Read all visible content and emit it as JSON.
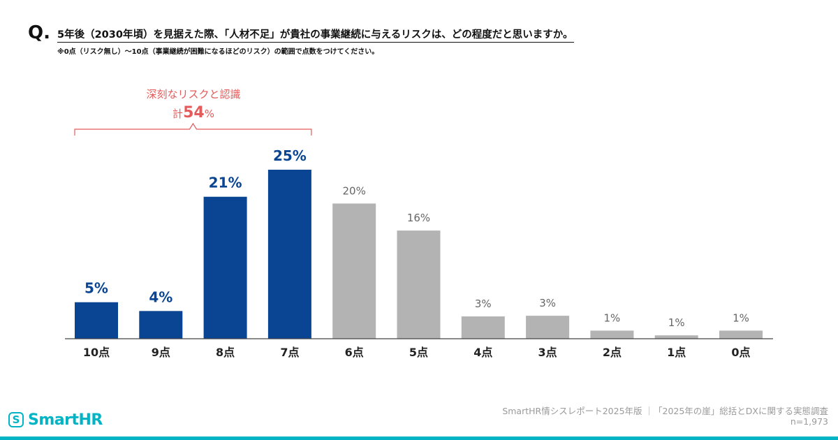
{
  "header": {
    "q_mark": "Q.",
    "question": "5年後（2030年頃）を見据えた際、「人材不足」が貴社の事業継続に与えるリスクは、どの程度だと思いますか。",
    "note": "※0点（リスク無し）〜10点（事業継続が困難になるほどのリスク）の範囲で点数をつけてください。"
  },
  "chart_data": {
    "type": "bar",
    "title": "",
    "xlabel": "",
    "ylabel": "",
    "categories": [
      "10点",
      "9点",
      "8点",
      "7点",
      "6点",
      "5点",
      "4点",
      "3点",
      "2点",
      "1点",
      "0点"
    ],
    "values": [
      5.4,
      4.1,
      21,
      25,
      20,
      16,
      3.3,
      3.4,
      1.2,
      0.5,
      1.2
    ],
    "value_labels": [
      "5%",
      "4%",
      "21%",
      "25%",
      "20%",
      "16%",
      "3%",
      "3%",
      "1%",
      "1%",
      "1%"
    ],
    "ylim": [
      0,
      25
    ],
    "grid": false,
    "highlight_count": 4,
    "colors": {
      "highlight": "#0a4593",
      "other": "#b3b3b3",
      "annotation": "#e55a5a",
      "axis": "#444444"
    },
    "annotation": {
      "label": "深刻なリスクと認識",
      "total_prefix": "計",
      "total_value": "54",
      "total_unit": "%"
    }
  },
  "footer": {
    "source": "SmartHR情シスレポート2025年版 ｜「2025年の崖」総括とDXに関する実態調査",
    "n": "n=1,973"
  },
  "logo": {
    "icon_glyph": "S",
    "text": "SmartHR",
    "icon": "smarthr-logo-icon",
    "color": "#00b4c5"
  }
}
